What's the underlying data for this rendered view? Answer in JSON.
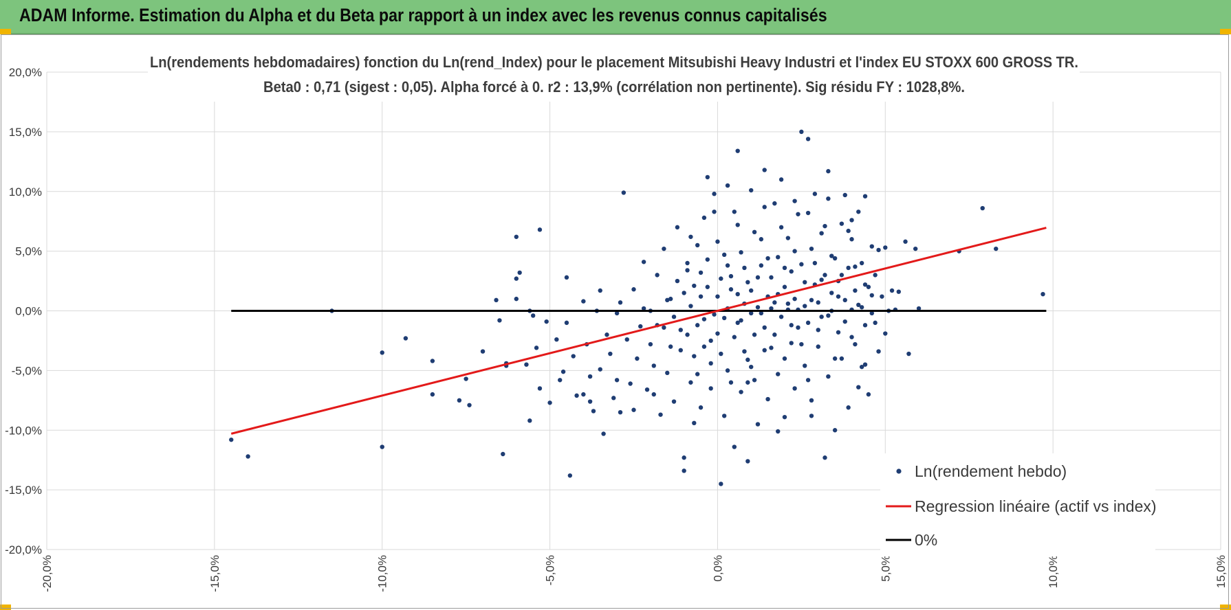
{
  "header": {
    "title": "ADAM Informe. Estimation du Alpha et du Beta par rapport à un index avec les revenus connus capitalisés"
  },
  "colors": {
    "header_bg": "#7dc47d",
    "points": "#1f3d73",
    "regression": "#e31a1a",
    "zero_line": "#000000",
    "corner_accent": "#f0b400"
  },
  "chart_data": {
    "type": "scatter",
    "title": "Ln(rendements hebdomadaires) fonction du Ln(rend_Index) pour le placement Mitsubishi Heavy Industri et l'index EU STOXX 600 GROSS TR.",
    "subtitle": "Beta0 : 0,71 (sigest : 0,05).  Alpha forcé à 0. r2 : 13,9% (corrélation non pertinente). Sig résidu FY : 1028,8%.",
    "xlim": [
      -0.2,
      0.15
    ],
    "ylim": [
      -0.2,
      0.2
    ],
    "x_ticks": [
      -0.2,
      -0.15,
      -0.1,
      -0.05,
      0.0,
      0.05,
      0.1,
      0.15
    ],
    "x_tick_labels": [
      "-20,0%",
      "-15,0%",
      "-10,0%",
      "-5,0%",
      "0,0%",
      "5,0%",
      "10,0%",
      "15,0%"
    ],
    "y_ticks": [
      0.2,
      0.15,
      0.1,
      0.05,
      0.0,
      -0.05,
      -0.1,
      -0.15,
      -0.2
    ],
    "y_tick_labels": [
      "20,0%",
      "15,0%",
      "10,0%",
      "5,0%",
      "0,0%",
      "-5,0%",
      "-10,0%",
      "-15,0%",
      "-20,0%"
    ],
    "grid": true,
    "legend_position": "bottom-right",
    "series": [
      {
        "name": "Ln(rendement hebdo)",
        "kind": "points",
        "points": [
          [
            -0.145,
            -0.108
          ],
          [
            -0.14,
            -0.122
          ],
          [
            -0.115,
            0.0
          ],
          [
            -0.1,
            -0.035
          ],
          [
            -0.1,
            -0.114
          ],
          [
            -0.093,
            -0.023
          ],
          [
            -0.085,
            -0.042
          ],
          [
            -0.085,
            -0.07
          ],
          [
            -0.075,
            -0.057
          ],
          [
            -0.077,
            -0.075
          ],
          [
            -0.074,
            -0.079
          ],
          [
            -0.07,
            -0.034
          ],
          [
            -0.066,
            0.009
          ],
          [
            -0.065,
            -0.008
          ],
          [
            -0.064,
            -0.12
          ],
          [
            -0.063,
            -0.044
          ],
          [
            -0.063,
            -0.046
          ],
          [
            -0.06,
            0.01
          ],
          [
            -0.06,
            0.062
          ],
          [
            -0.06,
            0.027
          ],
          [
            -0.059,
            0.032
          ],
          [
            -0.057,
            -0.045
          ],
          [
            -0.056,
            0.0
          ],
          [
            -0.056,
            -0.092
          ],
          [
            -0.055,
            -0.004
          ],
          [
            -0.054,
            -0.031
          ],
          [
            -0.053,
            -0.065
          ],
          [
            -0.053,
            0.068
          ],
          [
            -0.051,
            -0.009
          ],
          [
            -0.05,
            -0.077
          ],
          [
            -0.048,
            -0.024
          ],
          [
            -0.047,
            -0.058
          ],
          [
            -0.046,
            -0.051
          ],
          [
            -0.045,
            -0.01
          ],
          [
            -0.045,
            0.028
          ],
          [
            -0.044,
            -0.138
          ],
          [
            -0.043,
            -0.038
          ],
          [
            -0.042,
            -0.071
          ],
          [
            -0.04,
            0.008
          ],
          [
            -0.04,
            -0.07
          ],
          [
            -0.039,
            -0.028
          ],
          [
            -0.038,
            -0.055
          ],
          [
            -0.038,
            -0.076
          ],
          [
            -0.037,
            -0.084
          ],
          [
            -0.036,
            0.0
          ],
          [
            -0.035,
            -0.049
          ],
          [
            -0.034,
            -0.103
          ],
          [
            -0.033,
            -0.02
          ],
          [
            -0.032,
            -0.036
          ],
          [
            -0.031,
            -0.073
          ],
          [
            -0.03,
            -0.058
          ],
          [
            -0.029,
            0.007
          ],
          [
            -0.029,
            -0.085
          ],
          [
            -0.028,
            0.099
          ],
          [
            -0.027,
            -0.024
          ],
          [
            -0.026,
            -0.061
          ],
          [
            -0.025,
            -0.083
          ],
          [
            -0.024,
            -0.04
          ],
          [
            -0.023,
            -0.013
          ],
          [
            -0.022,
            0.002
          ],
          [
            -0.021,
            -0.066
          ],
          [
            -0.02,
            -0.028
          ],
          [
            -0.019,
            -0.046
          ],
          [
            -0.018,
            0.03
          ],
          [
            -0.017,
            -0.087
          ],
          [
            -0.016,
            -0.014
          ],
          [
            -0.015,
            -0.052
          ],
          [
            -0.014,
            0.01
          ],
          [
            -0.013,
            -0.076
          ],
          [
            -0.012,
            0.07
          ],
          [
            -0.011,
            -0.033
          ],
          [
            -0.01,
            -0.123
          ],
          [
            -0.01,
            -0.134
          ],
          [
            -0.009,
            0.034
          ],
          [
            -0.008,
            -0.06
          ],
          [
            -0.007,
            0.021
          ],
          [
            -0.006,
            -0.012
          ],
          [
            -0.005,
            -0.081
          ],
          [
            -0.004,
            0.078
          ],
          [
            -0.003,
            0.043
          ],
          [
            -0.002,
            -0.044
          ],
          [
            -0.001,
            -0.003
          ],
          [
            -0.01,
            0.015
          ],
          [
            -0.009,
            -0.02
          ],
          [
            -0.008,
            0.004
          ],
          [
            -0.007,
            -0.038
          ],
          [
            -0.006,
            0.055
          ],
          [
            -0.005,
            0.012
          ],
          [
            -0.004,
            -0.03
          ],
          [
            -0.003,
            0.112
          ],
          [
            -0.002,
            -0.065
          ],
          [
            -0.001,
            0.098
          ],
          [
            0.0,
            -0.019
          ],
          [
            0.001,
            -0.145
          ],
          [
            0.001,
            0.027
          ],
          [
            0.002,
            -0.006
          ],
          [
            0.002,
            -0.088
          ],
          [
            0.003,
            0.038
          ],
          [
            0.003,
            -0.05
          ],
          [
            0.004,
            0.018
          ],
          [
            0.005,
            -0.114
          ],
          [
            0.005,
            0.083
          ],
          [
            0.006,
            -0.01
          ],
          [
            0.006,
            0.134
          ],
          [
            0.007,
            -0.068
          ],
          [
            0.007,
            0.049
          ],
          [
            0.008,
            -0.034
          ],
          [
            0.008,
            0.006
          ],
          [
            0.009,
            -0.126
          ],
          [
            0.009,
            0.024
          ],
          [
            0.01,
            -0.002
          ],
          [
            0.01,
            -0.047
          ],
          [
            0.011,
            0.066
          ],
          [
            0.011,
            -0.02
          ],
          [
            0.012,
            0.003
          ],
          [
            0.012,
            -0.095
          ],
          [
            0.013,
            0.038
          ],
          [
            0.014,
            -0.014
          ],
          [
            0.014,
            0.118
          ],
          [
            0.015,
            0.012
          ],
          [
            0.015,
            -0.074
          ],
          [
            0.016,
            0.028
          ],
          [
            0.016,
            -0.031
          ],
          [
            0.017,
            0.007
          ],
          [
            0.017,
            0.09
          ],
          [
            0.018,
            -0.053
          ],
          [
            0.018,
            0.045
          ],
          [
            0.019,
            -0.005
          ],
          [
            0.019,
            0.11
          ],
          [
            0.02,
            0.02
          ],
          [
            0.02,
            -0.089
          ],
          [
            0.021,
            0.001
          ],
          [
            0.021,
            0.061
          ],
          [
            0.022,
            -0.027
          ],
          [
            0.022,
            0.033
          ],
          [
            0.023,
            -0.065
          ],
          [
            0.023,
            0.01
          ],
          [
            0.024,
            0.081
          ],
          [
            0.024,
            -0.014
          ],
          [
            0.025,
            0.15
          ],
          [
            0.025,
            0.039
          ],
          [
            0.026,
            -0.046
          ],
          [
            0.026,
            0.004
          ],
          [
            0.027,
            0.144
          ],
          [
            0.027,
            -0.01
          ],
          [
            0.028,
            0.052
          ],
          [
            0.028,
            -0.075
          ],
          [
            0.029,
            0.022
          ],
          [
            0.029,
            0.098
          ],
          [
            0.03,
            -0.03
          ],
          [
            0.03,
            0.007
          ],
          [
            0.031,
            0.065
          ],
          [
            0.031,
            -0.005
          ],
          [
            0.032,
            -0.123
          ],
          [
            0.032,
            0.03
          ],
          [
            0.033,
            0.117
          ],
          [
            0.033,
            -0.055
          ],
          [
            0.034,
            0.015
          ],
          [
            0.034,
            0.0
          ],
          [
            0.035,
            -0.1
          ],
          [
            0.035,
            0.044
          ],
          [
            0.036,
            0.025
          ],
          [
            0.036,
            -0.018
          ],
          [
            0.037,
            0.073
          ],
          [
            0.037,
            -0.04
          ],
          [
            0.038,
            0.009
          ],
          [
            0.038,
            0.097
          ],
          [
            0.039,
            -0.081
          ],
          [
            0.039,
            0.036
          ],
          [
            0.04,
            0.001
          ],
          [
            0.04,
            0.06
          ],
          [
            0.041,
            -0.028
          ],
          [
            0.041,
            0.017
          ],
          [
            0.042,
            0.083
          ],
          [
            0.042,
            -0.064
          ],
          [
            0.043,
            0.003
          ],
          [
            0.043,
            0.04
          ],
          [
            0.044,
            -0.012
          ],
          [
            0.044,
            0.096
          ],
          [
            0.045,
            0.02
          ],
          [
            0.045,
            -0.07
          ],
          [
            0.046,
            0.054
          ],
          [
            0.046,
            -0.002
          ],
          [
            0.047,
            0.03
          ],
          [
            0.048,
            -0.034
          ],
          [
            0.048,
            0.051
          ],
          [
            0.049,
            0.012
          ],
          [
            0.05,
            -0.019
          ],
          [
            0.05,
            0.053
          ],
          [
            0.051,
            0.0
          ],
          [
            0.052,
            0.017
          ],
          [
            0.053,
            0.001
          ],
          [
            0.054,
            0.016
          ],
          [
            0.056,
            0.058
          ],
          [
            0.057,
            -0.036
          ],
          [
            0.059,
            0.052
          ],
          [
            0.06,
            0.002
          ],
          [
            0.072,
            0.05
          ],
          [
            0.079,
            0.086
          ],
          [
            0.083,
            0.052
          ],
          [
            0.097,
            0.014
          ],
          [
            -0.035,
            0.017
          ],
          [
            -0.03,
            -0.002
          ],
          [
            -0.025,
            0.018
          ],
          [
            -0.02,
            0.0
          ],
          [
            -0.018,
            -0.012
          ],
          [
            -0.015,
            0.009
          ],
          [
            -0.013,
            -0.005
          ],
          [
            -0.012,
            0.025
          ],
          [
            -0.011,
            -0.016
          ],
          [
            -0.009,
            0.04
          ],
          [
            -0.008,
            0.062
          ],
          [
            -0.006,
            -0.053
          ],
          [
            -0.005,
            0.032
          ],
          [
            -0.004,
            -0.007
          ],
          [
            -0.003,
            0.02
          ],
          [
            -0.002,
            -0.025
          ],
          [
            0.0,
            0.012
          ],
          [
            0.0,
            0.058
          ],
          [
            0.001,
            -0.036
          ],
          [
            0.002,
            0.047
          ],
          [
            0.003,
            0.002
          ],
          [
            0.004,
            -0.06
          ],
          [
            0.004,
            0.029
          ],
          [
            0.005,
            -0.022
          ],
          [
            0.006,
            0.014
          ],
          [
            0.006,
            0.072
          ],
          [
            0.007,
            -0.008
          ],
          [
            0.008,
            0.036
          ],
          [
            0.009,
            -0.041
          ],
          [
            0.01,
            0.017
          ],
          [
            0.01,
            0.101
          ],
          [
            0.011,
            -0.058
          ],
          [
            0.012,
            0.028
          ],
          [
            0.013,
            -0.002
          ],
          [
            0.013,
            0.06
          ],
          [
            0.014,
            -0.033
          ],
          [
            0.015,
            0.044
          ],
          [
            0.016,
            0.002
          ],
          [
            0.017,
            -0.02
          ],
          [
            0.018,
            0.014
          ],
          [
            0.019,
            0.07
          ],
          [
            0.02,
            -0.04
          ],
          [
            0.02,
            0.036
          ],
          [
            0.021,
            0.006
          ],
          [
            0.022,
            -0.012
          ],
          [
            0.023,
            0.05
          ],
          [
            0.024,
            0.001
          ],
          [
            0.025,
            -0.028
          ],
          [
            0.026,
            0.024
          ],
          [
            0.027,
            0.082
          ],
          [
            0.027,
            -0.058
          ],
          [
            0.028,
            0.009
          ],
          [
            0.029,
            0.04
          ],
          [
            0.03,
            -0.016
          ],
          [
            0.031,
            0.026
          ],
          [
            0.032,
            0.071
          ],
          [
            0.033,
            -0.004
          ],
          [
            0.034,
            0.046
          ],
          [
            0.035,
            -0.04
          ],
          [
            0.036,
            0.012
          ],
          [
            0.037,
            0.03
          ],
          [
            0.038,
            -0.009
          ],
          [
            0.039,
            0.067
          ],
          [
            0.04,
            -0.022
          ],
          [
            0.041,
            0.037
          ],
          [
            0.042,
            0.005
          ],
          [
            0.043,
            -0.047
          ],
          [
            0.044,
            0.022
          ],
          [
            0.046,
            0.013
          ],
          [
            0.047,
            -0.01
          ],
          [
            -0.022,
            0.041
          ],
          [
            -0.019,
            -0.07
          ],
          [
            -0.016,
            0.052
          ],
          [
            -0.014,
            -0.03
          ],
          [
            -0.007,
            -0.094
          ],
          [
            -0.001,
            0.083
          ],
          [
            0.003,
            0.105
          ],
          [
            0.009,
            -0.06
          ],
          [
            0.014,
            0.087
          ],
          [
            0.018,
            -0.101
          ],
          [
            0.023,
            0.092
          ],
          [
            0.028,
            -0.088
          ],
          [
            0.033,
            0.094
          ],
          [
            0.04,
            0.076
          ],
          [
            0.044,
            -0.045
          ]
        ]
      },
      {
        "name": "Regression linéaire (actif vs index)",
        "kind": "line",
        "slope": 0.71,
        "intercept": 0.0,
        "x_range": [
          -0.145,
          0.098
        ]
      },
      {
        "name": "0%",
        "kind": "hline",
        "y": 0.0,
        "x_range": [
          -0.145,
          0.098
        ]
      }
    ]
  }
}
